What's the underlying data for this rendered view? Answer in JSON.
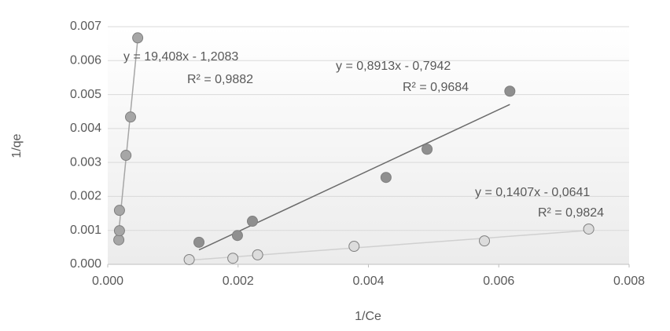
{
  "chart_data": {
    "type": "scatter",
    "x_label": "1/Ce",
    "y_label": "1/qe",
    "xlim": [
      0,
      0.008
    ],
    "ylim": [
      0,
      0.007
    ],
    "xticks": [
      {
        "value": 0,
        "label": "0.000"
      },
      {
        "value": 0.002,
        "label": "0.002"
      },
      {
        "value": 0.004,
        "label": "0.004"
      },
      {
        "value": 0.006,
        "label": "0.006"
      },
      {
        "value": 0.008,
        "label": "0.008"
      }
    ],
    "yticks": [
      {
        "value": 0,
        "label": "0.000"
      },
      {
        "value": 0.001,
        "label": "0.001"
      },
      {
        "value": 0.002,
        "label": "0.002"
      },
      {
        "value": 0.003,
        "label": "0.003"
      },
      {
        "value": 0.004,
        "label": "0.004"
      },
      {
        "value": 0.005,
        "label": "0.005"
      },
      {
        "value": 0.006,
        "label": "0.006"
      },
      {
        "value": 0.007,
        "label": "0.007"
      }
    ],
    "grid": true,
    "series": [
      {
        "color": "#a6a6a6",
        "line_color": "#a6a6a6",
        "x": [
          0.00017,
          0.00018,
          0.00018,
          0.00028,
          0.00035,
          0.00046
        ],
        "values": [
          0.00072,
          0.00099,
          0.00159,
          0.00321,
          0.00434,
          0.00667
        ],
        "equation": "y = 19,408x - 1,2083",
        "r2": "R² = 0,9882"
      },
      {
        "color": "#8f8f8f",
        "line_color": "#6b6b6b",
        "x": [
          0.0014,
          0.00199,
          0.00222,
          0.00427,
          0.0049,
          0.00617
        ],
        "values": [
          0.00065,
          0.00085,
          0.00127,
          0.00256,
          0.00339,
          0.0051
        ],
        "equation": "y = 0,8913x - 0,7942",
        "r2": "R² = 0,9684"
      },
      {
        "color": "#dcdcdc",
        "line_color": "#d0d0d0",
        "x": [
          0.00125,
          0.00192,
          0.0023,
          0.00378,
          0.00578,
          0.00738
        ],
        "values": [
          0.00014,
          0.00018,
          0.00028,
          0.00053,
          0.00069,
          0.00104
        ],
        "equation": "y = 0,1407x - 0,0641",
        "r2": "R² = 0,9824"
      }
    ]
  }
}
